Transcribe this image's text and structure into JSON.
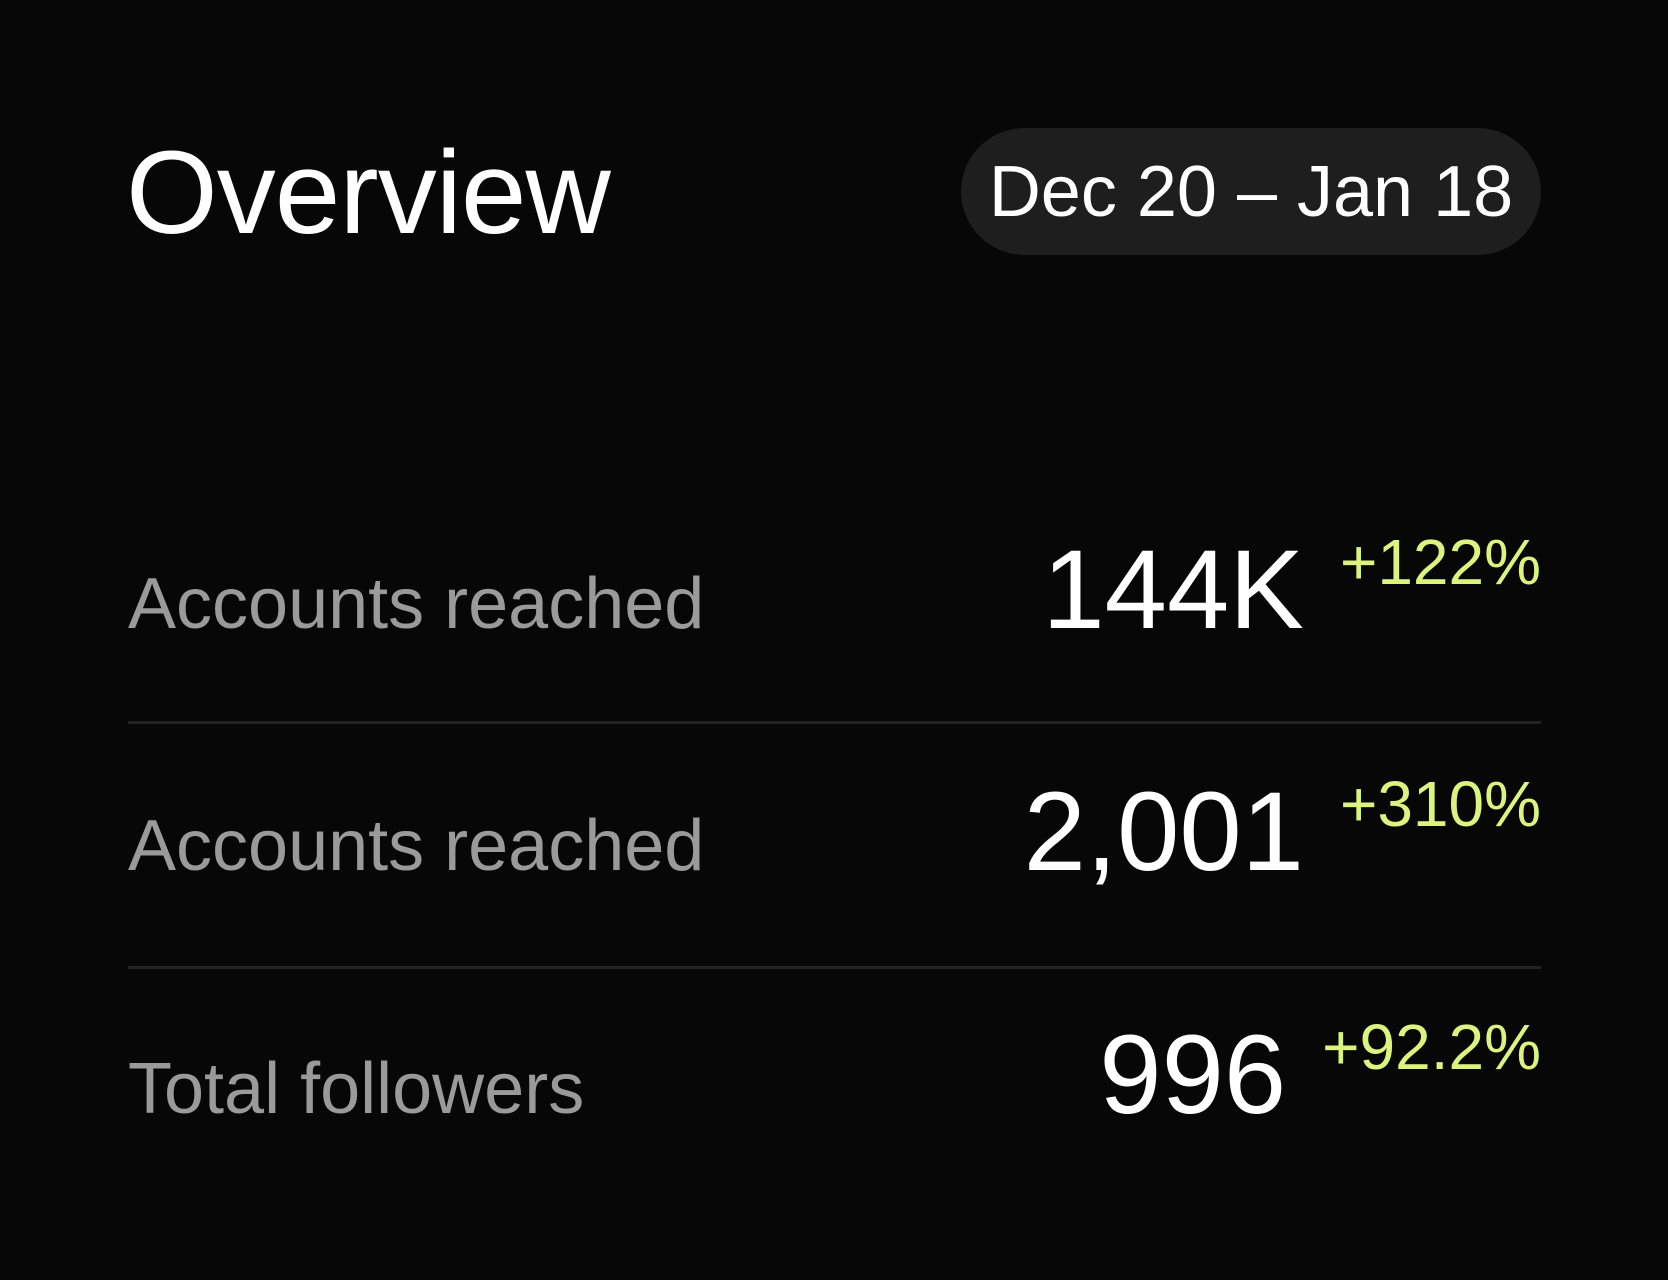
{
  "header": {
    "title": "Overview",
    "date_range": "Dec 20 – Jan 18"
  },
  "metrics": [
    {
      "label": "Accounts reached",
      "value": "144K",
      "change": "+122%"
    },
    {
      "label": "Accounts reached",
      "value": "2,001",
      "change": "+310%"
    },
    {
      "label": "Total followers",
      "value": "996",
      "change": "+92.2%"
    }
  ]
}
